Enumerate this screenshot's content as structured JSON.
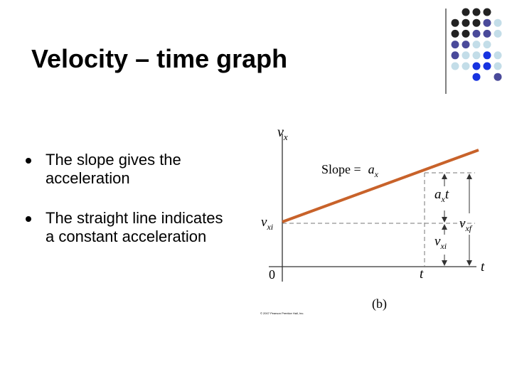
{
  "slide": {
    "title": "Velocity – time graph",
    "bullets": [
      "The slope gives the acceleration",
      "The straight line indicates a constant acceleration"
    ],
    "figure": {
      "y_axis_label": {
        "symbol": "v",
        "subscript": "x"
      },
      "slope_label": {
        "text": "Slope =",
        "symbol": "a",
        "subscript": "x"
      },
      "initial_velocity_label": {
        "symbol": "v",
        "subscript": "xi"
      },
      "change_label": {
        "symbol": "a",
        "subscript": "x",
        "suffix": "t"
      },
      "final_velocity_label": {
        "symbol": "v",
        "subscript": "xf"
      },
      "lower_velocity_label": {
        "symbol": "v",
        "subscript": "xi"
      },
      "origin_label": "0",
      "time_tick_label": "t",
      "x_axis_label": "t",
      "panel_label": "(b)",
      "copyright": "© 2007 Pearson Prentice Hall, Inc."
    }
  }
}
